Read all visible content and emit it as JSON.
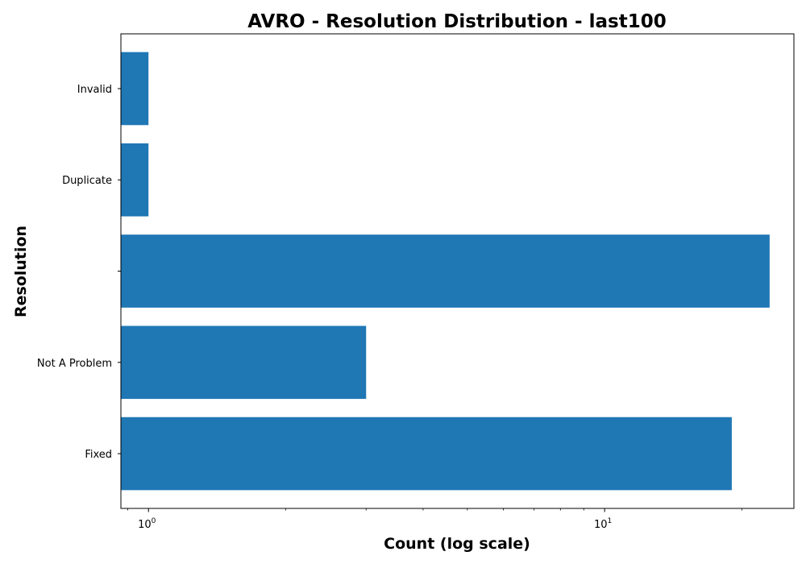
{
  "chart_data": {
    "type": "bar",
    "orientation": "horizontal",
    "title": "AVRO - Resolution Distribution - last100",
    "xlabel": "Count (log scale)",
    "ylabel": "Resolution",
    "x_scale": "log",
    "xlim": [
      0.87,
      26
    ],
    "categories": [
      "Fixed",
      "Not A Problem",
      "",
      "Duplicate",
      "Invalid"
    ],
    "values": [
      19,
      3,
      23,
      1,
      1
    ],
    "x_ticks": [
      {
        "value": 1,
        "base": "10",
        "exp": "0"
      },
      {
        "value": 10,
        "base": "10",
        "exp": "1"
      }
    ],
    "bar_color": "#1f77b4",
    "grid": false,
    "legend": "none"
  }
}
